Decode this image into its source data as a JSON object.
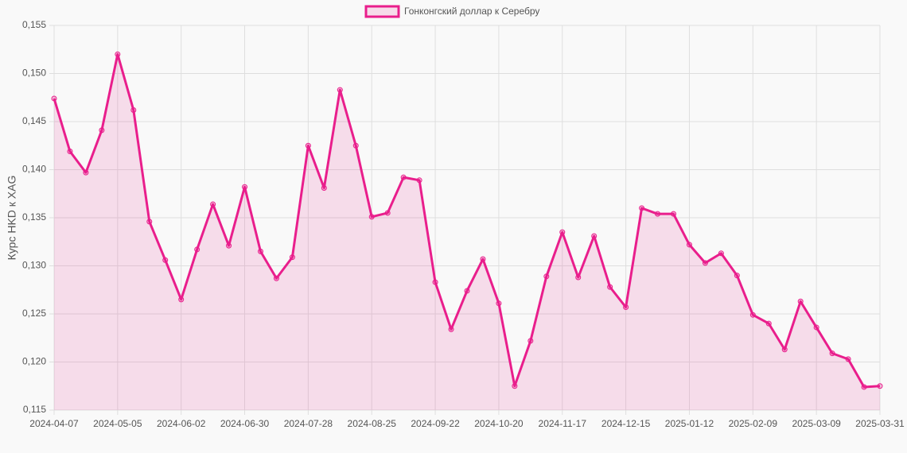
{
  "chart_data": {
    "type": "line",
    "legend": "Гонконгский доллар к Серебру",
    "y_label": "Курс HKD к XAG",
    "categories": [
      "2024-04-07",
      null,
      null,
      null,
      "2024-05-05",
      null,
      null,
      null,
      "2024-06-02",
      null,
      null,
      null,
      "2024-06-30",
      null,
      null,
      null,
      "2024-07-28",
      null,
      null,
      null,
      "2024-08-25",
      null,
      null,
      null,
      "2024-09-22",
      null,
      null,
      null,
      "2024-10-20",
      null,
      null,
      null,
      "2024-11-17",
      null,
      null,
      null,
      "2024-12-15",
      null,
      null,
      null,
      "2025-01-12",
      null,
      null,
      null,
      "2025-02-09",
      null,
      null,
      null,
      "2025-03-09",
      null,
      null,
      null,
      "2025-03-31"
    ],
    "series": [
      {
        "name": "Гонконгский доллар к Серебру",
        "color": "#e91e8c",
        "fill": "rgba(233,30,140,0.13)",
        "values": [
          0.1474,
          0.1419,
          0.1397,
          0.1441,
          0.152,
          0.1462,
          0.1346,
          0.1306,
          0.1265,
          0.1317,
          0.1364,
          0.1321,
          0.1382,
          0.1315,
          0.1287,
          0.1309,
          0.1425,
          0.1381,
          0.1483,
          0.1425,
          0.1351,
          0.1355,
          0.1392,
          0.1389,
          0.1283,
          0.1234,
          0.1274,
          0.1307,
          0.1261,
          0.1175,
          0.1222,
          0.1289,
          0.1335,
          0.1288,
          0.1331,
          0.1278,
          0.1257,
          0.136,
          0.1354,
          0.1354,
          0.1322,
          0.1303,
          0.1313,
          0.129,
          0.1249,
          0.124,
          0.1213,
          0.1263,
          0.1236,
          0.1209,
          0.1203,
          0.1174,
          0.1175
        ]
      }
    ],
    "ylim": [
      0.115,
      0.155
    ],
    "yticks": [
      {
        "value": 0.115,
        "label": "0,115"
      },
      {
        "value": 0.12,
        "label": "0,120"
      },
      {
        "value": 0.125,
        "label": "0,125"
      },
      {
        "value": 0.13,
        "label": "0,130"
      },
      {
        "value": 0.135,
        "label": "0,135"
      },
      {
        "value": 0.14,
        "label": "0,140"
      },
      {
        "value": 0.145,
        "label": "0,145"
      },
      {
        "value": 0.15,
        "label": "0,150"
      },
      {
        "value": 0.155,
        "label": "0,155"
      }
    ],
    "grid": true
  }
}
